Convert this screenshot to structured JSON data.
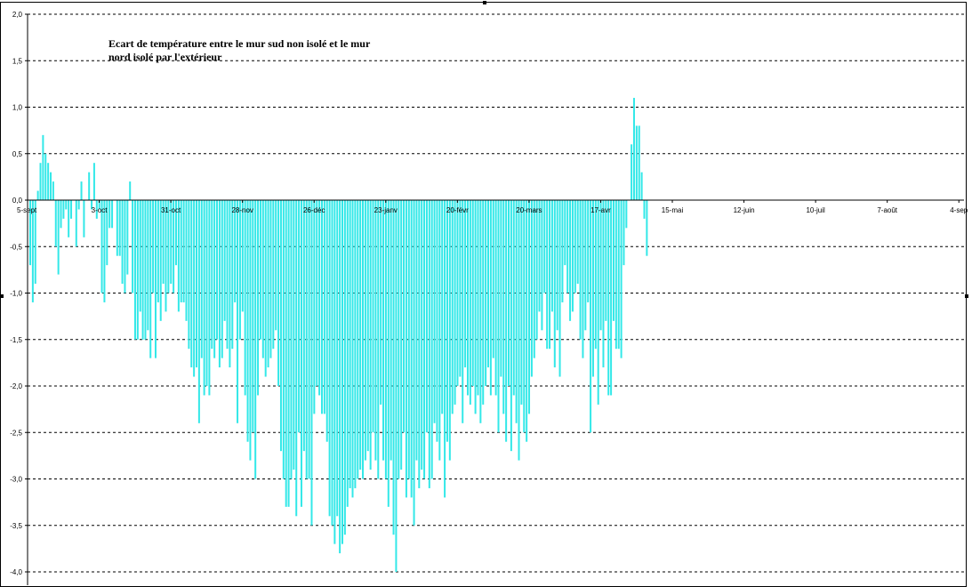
{
  "chart_data": {
    "type": "bar",
    "title_lines": [
      "Ecart de température entre le mur sud non isolé et le mur",
      "nord isolé par l'extérieur"
    ],
    "xlabel": "",
    "ylabel": "",
    "ylim": [
      -4.0,
      2.0
    ],
    "yticks": [
      "2,0",
      "1,5",
      "1,0",
      "0,5",
      "0,0",
      "-0,5",
      "-1,0",
      "-1,5",
      "-2,0",
      "-2,5",
      "-3,0",
      "-3,5",
      "-4,0"
    ],
    "xticks": [
      "5-sept",
      "3-oct",
      "31-oct",
      "28-nov",
      "26-déc",
      "23-janv",
      "20-févr",
      "20-mars",
      "17-avr",
      "15-mai",
      "12-juin",
      "10-juil",
      "7-août",
      "4-sep"
    ],
    "x_start": "5-sept",
    "grid": true,
    "bar_color": "#33e8e8",
    "values": [
      -0.7,
      -1.1,
      -0.9,
      0.1,
      0.4,
      0.7,
      0.5,
      0.4,
      0.3,
      0.2,
      -0.5,
      -0.8,
      -0.3,
      -0.2,
      -0.1,
      -0.4,
      -0.2,
      0.0,
      -0.5,
      -0.1,
      0.2,
      -0.4,
      0.0,
      0.3,
      -0.1,
      0.4,
      -0.2,
      -0.1,
      -1.0,
      -1.1,
      -0.7,
      -0.3,
      -0.3,
      0.0,
      -0.6,
      -0.6,
      -0.9,
      -1.0,
      -0.8,
      0.2,
      -1.0,
      -1.5,
      -1.5,
      -1.2,
      -1.5,
      -1.5,
      -1.4,
      -1.7,
      -1.0,
      -1.7,
      -1.1,
      -1.3,
      -0.9,
      -1.2,
      -1.0,
      -0.9,
      -1.0,
      -0.7,
      -1.2,
      -1.1,
      -1.1,
      -1.3,
      -1.6,
      -1.8,
      -1.9,
      -1.8,
      -2.4,
      -1.7,
      -2.1,
      -2.0,
      -2.1,
      -1.6,
      -1.7,
      -1.5,
      -1.8,
      -1.7,
      -1.3,
      -1.6,
      -1.8,
      -1.6,
      -1.1,
      -2.4,
      -1.5,
      -1.2,
      -2.1,
      -2.6,
      -2.8,
      -2.5,
      -3.0,
      -2.1,
      -1.5,
      -1.7,
      -1.9,
      -1.8,
      -1.7,
      -1.6,
      -1.4,
      -2.0,
      -2.7,
      -3.0,
      -3.3,
      -3.3,
      -3.0,
      -2.9,
      -3.4,
      -2.5,
      -3.3,
      -2.7,
      -3.0,
      -3.0,
      -3.5,
      -2.3,
      -2.0,
      -2.1,
      -2.3,
      -2.3,
      -2.6,
      -3.4,
      -3.5,
      -3.7,
      -3.4,
      -3.8,
      -3.7,
      -3.6,
      -3.3,
      -3.1,
      -3.2,
      -3.1,
      -3.0,
      -2.9,
      -3.0,
      -2.8,
      -2.7,
      -2.9,
      -2.5,
      -2.8,
      -3.0,
      -2.2,
      -2.8,
      -3.0,
      -3.3,
      -2.8,
      -3.6,
      -4.0,
      -3.0,
      -2.9,
      -2.5,
      -3.2,
      -3.0,
      -3.2,
      -3.5,
      -2.8,
      -3.1,
      -2.9,
      -3.0,
      -2.5,
      -3.1,
      -3.0,
      -2.4,
      -2.6,
      -2.8,
      -2.3,
      -3.2,
      -2.6,
      -2.8,
      -2.3,
      -2.2,
      -2.0,
      -1.9,
      -2.4,
      -1.8,
      -2.1,
      -2.2,
      -2.0,
      -2.3,
      -2.1,
      -2.4,
      -2.2,
      -2.0,
      -1.8,
      -2.1,
      -1.7,
      -2.1,
      -2.5,
      -1.9,
      -2.3,
      -2.6,
      -2.0,
      -2.7,
      -2.1,
      -2.4,
      -2.8,
      -2.2,
      -2.5,
      -2.6,
      -2.3,
      -1.9,
      -1.7,
      -1.5,
      -1.2,
      -1.4,
      -1.0,
      -1.6,
      -1.6,
      -1.2,
      -1.8,
      -1.4,
      -1.9,
      -1.1,
      -0.7,
      -1.0,
      -1.3,
      -1.2,
      -1.0,
      -0.9,
      -1.5,
      -1.7,
      -1.4,
      -1.1,
      -2.5,
      -1.9,
      -1.6,
      -2.2,
      -1.4,
      -1.8,
      -1.3,
      -2.1,
      -2.1,
      -1.3,
      -1.6,
      -1.6,
      -1.7,
      -0.7,
      -0.3,
      0.0,
      0.6,
      1.1,
      0.8,
      0.8,
      0.3,
      -0.2,
      -0.6
    ]
  }
}
